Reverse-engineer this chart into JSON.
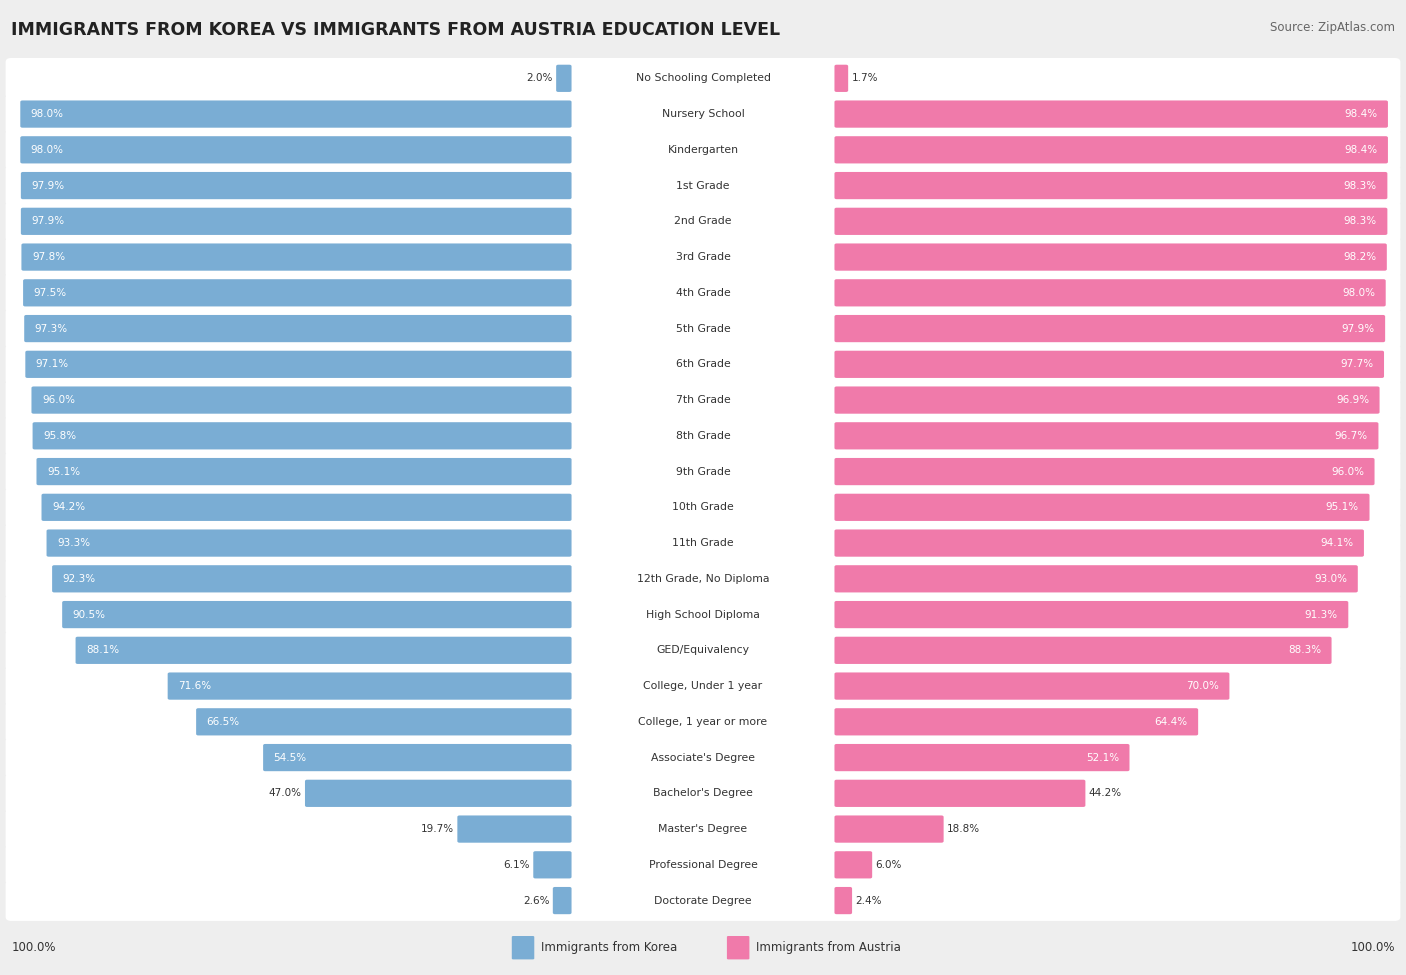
{
  "title": "IMMIGRANTS FROM KOREA VS IMMIGRANTS FROM AUSTRIA EDUCATION LEVEL",
  "source": "Source: ZipAtlas.com",
  "categories": [
    "No Schooling Completed",
    "Nursery School",
    "Kindergarten",
    "1st Grade",
    "2nd Grade",
    "3rd Grade",
    "4th Grade",
    "5th Grade",
    "6th Grade",
    "7th Grade",
    "8th Grade",
    "9th Grade",
    "10th Grade",
    "11th Grade",
    "12th Grade, No Diploma",
    "High School Diploma",
    "GED/Equivalency",
    "College, Under 1 year",
    "College, 1 year or more",
    "Associate's Degree",
    "Bachelor's Degree",
    "Master's Degree",
    "Professional Degree",
    "Doctorate Degree"
  ],
  "korea_values": [
    2.0,
    98.0,
    98.0,
    97.9,
    97.9,
    97.8,
    97.5,
    97.3,
    97.1,
    96.0,
    95.8,
    95.1,
    94.2,
    93.3,
    92.3,
    90.5,
    88.1,
    71.6,
    66.5,
    54.5,
    47.0,
    19.7,
    6.1,
    2.6
  ],
  "austria_values": [
    1.7,
    98.4,
    98.4,
    98.3,
    98.3,
    98.2,
    98.0,
    97.9,
    97.7,
    96.9,
    96.7,
    96.0,
    95.1,
    94.1,
    93.0,
    91.3,
    88.3,
    70.0,
    64.4,
    52.1,
    44.2,
    18.8,
    6.0,
    2.4
  ],
  "korea_color": "#7aadd4",
  "austria_color": "#f07aaa",
  "background_color": "#eeeeee",
  "legend_korea": "Immigrants from Korea",
  "legend_austria": "Immigrants from Austria"
}
